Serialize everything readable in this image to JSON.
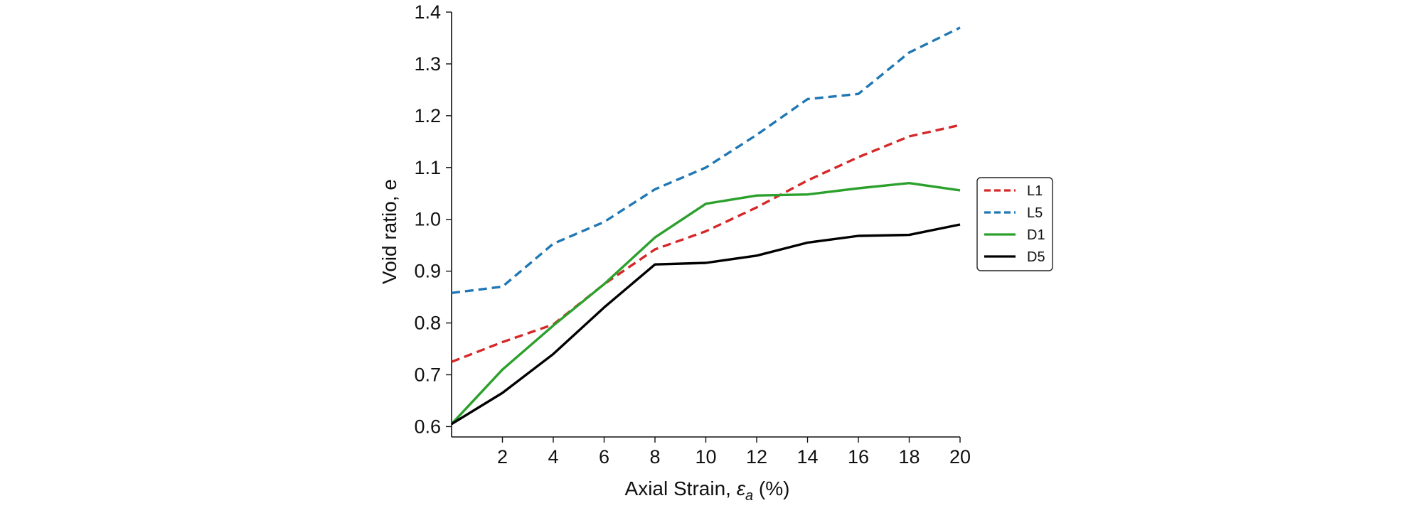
{
  "chart_data": {
    "type": "line",
    "title": "",
    "xlabel_main": "Axial Strain, ",
    "xlabel_symbol": "ε",
    "xlabel_sub": "a",
    "xlabel_unit": " (%)",
    "ylabel": "Void ratio, e",
    "xlim": [
      0,
      20
    ],
    "ylim": [
      0.58,
      1.4
    ],
    "xticks": [
      2,
      4,
      6,
      8,
      10,
      12,
      14,
      16,
      18,
      20
    ],
    "xtick_labels": [
      "2",
      "4",
      "6",
      "8",
      "10",
      "12",
      "14",
      "16",
      "18",
      "20"
    ],
    "yticks": [
      0.6,
      0.7,
      0.8,
      0.9,
      1.0,
      1.1,
      1.2,
      1.3,
      1.4
    ],
    "ytick_labels": [
      "0.6",
      "0.7",
      "0.8",
      "0.9",
      "1.0",
      "1.1",
      "1.2",
      "1.3",
      "1.4"
    ],
    "grid": false,
    "legend_position": "right",
    "series": [
      {
        "name": "L1",
        "color": "#d62728",
        "style": "dashed",
        "x": [
          0,
          2,
          4,
          6,
          8,
          10,
          12,
          14,
          16,
          18,
          20
        ],
        "y": [
          0.725,
          0.763,
          0.797,
          0.875,
          0.942,
          0.977,
          1.023,
          1.075,
          1.12,
          1.16,
          1.182
        ]
      },
      {
        "name": "L5",
        "color": "#1f77b4",
        "style": "dashed",
        "x": [
          0,
          2,
          4,
          6,
          8,
          10,
          12,
          14,
          16,
          18,
          20
        ],
        "y": [
          0.858,
          0.87,
          0.953,
          0.995,
          1.058,
          1.1,
          1.163,
          1.232,
          1.242,
          1.322,
          1.37
        ]
      },
      {
        "name": "D1",
        "color": "#2ca02c",
        "style": "solid",
        "x": [
          0,
          2,
          4,
          6,
          8,
          10,
          12,
          14,
          16,
          18,
          20
        ],
        "y": [
          0.605,
          0.71,
          0.795,
          0.875,
          0.965,
          1.03,
          1.046,
          1.048,
          1.06,
          1.07,
          1.056
        ]
      },
      {
        "name": "D5",
        "color": "#000000",
        "style": "solid",
        "x": [
          0,
          2,
          4,
          6,
          8,
          10,
          12,
          14,
          16,
          18,
          20
        ],
        "y": [
          0.605,
          0.665,
          0.74,
          0.83,
          0.913,
          0.916,
          0.93,
          0.955,
          0.968,
          0.97,
          0.99
        ]
      }
    ]
  }
}
